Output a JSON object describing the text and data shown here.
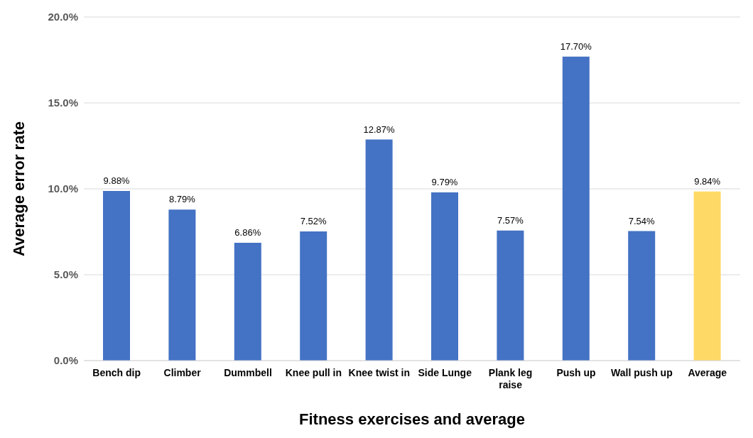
{
  "chart_data": {
    "type": "bar",
    "xlabel": "Fitness exercises and average",
    "ylabel": "Average error rate",
    "categories": [
      "Bench dip",
      "Climber",
      "Dummbell",
      "Knee pull in",
      "Knee twist in",
      "Side Lunge",
      "Plank leg raise",
      "Push up",
      "Wall push up",
      "Average"
    ],
    "values": [
      9.88,
      8.79,
      6.86,
      7.52,
      12.87,
      9.79,
      7.57,
      17.7,
      7.54,
      9.84
    ],
    "colors": [
      "#4472c4",
      "#4472c4",
      "#4472c4",
      "#4472c4",
      "#4472c4",
      "#4472c4",
      "#4472c4",
      "#4472c4",
      "#4472c4",
      "#ffd966"
    ],
    "value_labels": [
      "9.88%",
      "8.79%",
      "6.86%",
      "7.52%",
      "12.87%",
      "9.79%",
      "7.57%",
      "17.70%",
      "7.54%",
      "9.84%"
    ],
    "ylim": [
      0,
      20
    ],
    "yticks": [
      {
        "value": 0,
        "label": "0.0%"
      },
      {
        "value": 5,
        "label": "5.0%"
      },
      {
        "value": 10,
        "label": "10.0%"
      },
      {
        "value": 15,
        "label": "15.0%"
      },
      {
        "value": 20,
        "label": "20.0%"
      }
    ],
    "grid": "y"
  }
}
